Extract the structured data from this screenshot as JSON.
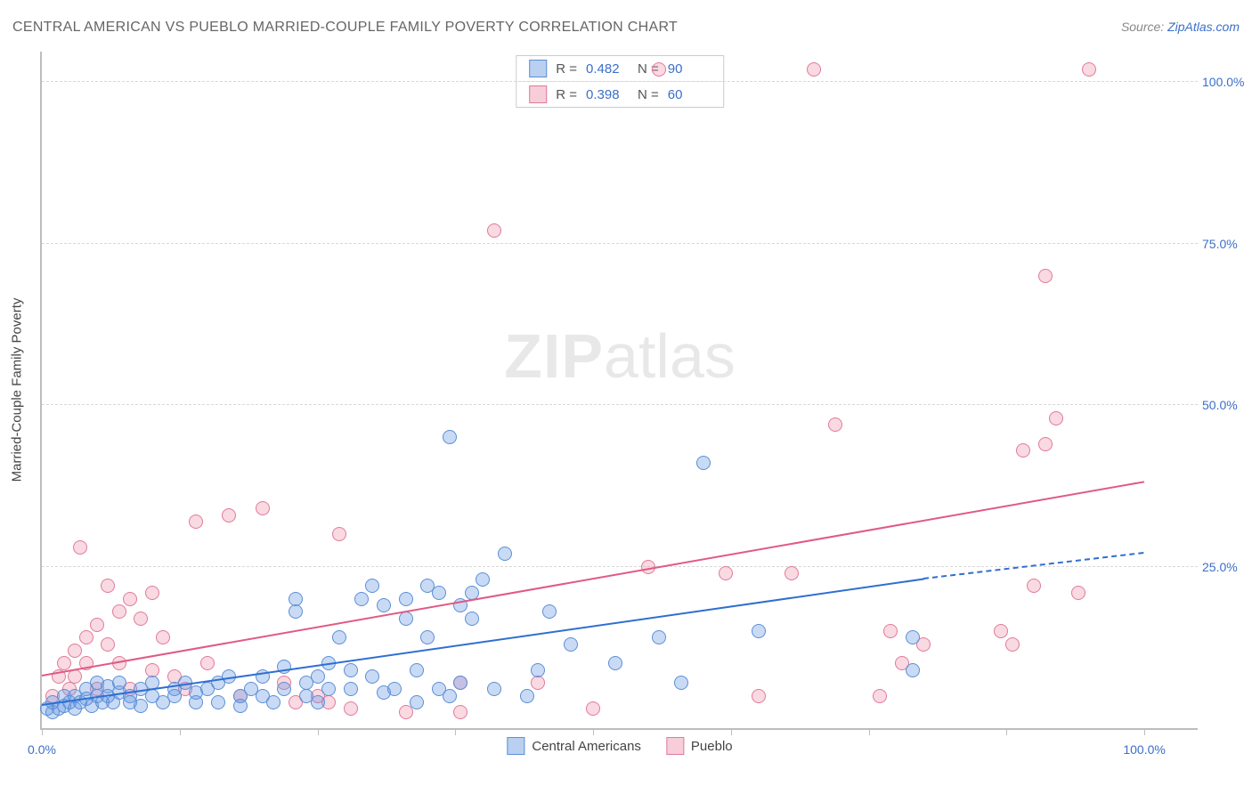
{
  "title": "CENTRAL AMERICAN VS PUEBLO MARRIED-COUPLE FAMILY POVERTY CORRELATION CHART",
  "source_label": "Source:",
  "source_name": "ZipAtlas.com",
  "watermark": {
    "left": "ZIP",
    "right": "atlas"
  },
  "ylabel": "Married-Couple Family Poverty",
  "chart": {
    "type": "scatter",
    "xlim": [
      0,
      105
    ],
    "ylim": [
      0,
      105
    ],
    "xtick_positions": [
      0,
      12.5,
      25,
      37.5,
      50,
      62.5,
      75,
      87.5,
      100
    ],
    "xtick_labels": {
      "0": "0.0%",
      "100": "100.0%"
    },
    "ytick_positions": [
      25,
      50,
      75,
      100
    ],
    "ytick_labels": [
      "25.0%",
      "50.0%",
      "75.0%",
      "100.0%"
    ],
    "grid_color": "#d8d8d8",
    "axis_color": "#bdbdbd",
    "background_color": "#ffffff",
    "marker_radius": 8,
    "marker_border_width": 1.2,
    "series": [
      {
        "name": "Central Americans",
        "fill": "rgba(100,150,225,0.35)",
        "stroke": "#5b8fd6",
        "r_value": "0.482",
        "n_value": "90",
        "trend": {
          "x1": 0,
          "y1": 3.5,
          "x2": 80,
          "y2": 23,
          "x2_dash": 100,
          "y2_dash": 27,
          "color": "#2f6fd0"
        },
        "points": [
          [
            0.5,
            3
          ],
          [
            1,
            2.5
          ],
          [
            1,
            4
          ],
          [
            1.5,
            3
          ],
          [
            2,
            3.5
          ],
          [
            2,
            5
          ],
          [
            2.5,
            4
          ],
          [
            3,
            3
          ],
          [
            3,
            5
          ],
          [
            3.5,
            4
          ],
          [
            4,
            4.5
          ],
          [
            4,
            6
          ],
          [
            4.5,
            3.5
          ],
          [
            5,
            5
          ],
          [
            5,
            7
          ],
          [
            5.5,
            4
          ],
          [
            6,
            5
          ],
          [
            6,
            6.5
          ],
          [
            6.5,
            4
          ],
          [
            7,
            5.5
          ],
          [
            7,
            7
          ],
          [
            8,
            5
          ],
          [
            8,
            4
          ],
          [
            9,
            6
          ],
          [
            9,
            3.5
          ],
          [
            10,
            5
          ],
          [
            10,
            7
          ],
          [
            11,
            4
          ],
          [
            12,
            6
          ],
          [
            12,
            5
          ],
          [
            13,
            7
          ],
          [
            14,
            4
          ],
          [
            14,
            5.5
          ],
          [
            15,
            6
          ],
          [
            16,
            4
          ],
          [
            16,
            7
          ],
          [
            17,
            8
          ],
          [
            18,
            5
          ],
          [
            18,
            3.5
          ],
          [
            19,
            6
          ],
          [
            20,
            5
          ],
          [
            20,
            8
          ],
          [
            21,
            4
          ],
          [
            22,
            6
          ],
          [
            22,
            9.5
          ],
          [
            23,
            18
          ],
          [
            23,
            20
          ],
          [
            24,
            5
          ],
          [
            24,
            7
          ],
          [
            25,
            8
          ],
          [
            25,
            4
          ],
          [
            26,
            6
          ],
          [
            26,
            10
          ],
          [
            27,
            14
          ],
          [
            28,
            9
          ],
          [
            28,
            6
          ],
          [
            29,
            20
          ],
          [
            30,
            22
          ],
          [
            30,
            8
          ],
          [
            31,
            5.5
          ],
          [
            31,
            19
          ],
          [
            32,
            6
          ],
          [
            33,
            20
          ],
          [
            33,
            17
          ],
          [
            34,
            4
          ],
          [
            34,
            9
          ],
          [
            35,
            22
          ],
          [
            35,
            14
          ],
          [
            36,
            6
          ],
          [
            36,
            21
          ],
          [
            37,
            5
          ],
          [
            37,
            45
          ],
          [
            38,
            19
          ],
          [
            38,
            7
          ],
          [
            39,
            21
          ],
          [
            39,
            17
          ],
          [
            40,
            23
          ],
          [
            41,
            6
          ],
          [
            42,
            27
          ],
          [
            44,
            5
          ],
          [
            45,
            9
          ],
          [
            46,
            18
          ],
          [
            48,
            13
          ],
          [
            52,
            10
          ],
          [
            56,
            14
          ],
          [
            58,
            7
          ],
          [
            60,
            41
          ],
          [
            65,
            15
          ],
          [
            79,
            9
          ],
          [
            79,
            14
          ]
        ]
      },
      {
        "name": "Pueblo",
        "fill": "rgba(235,130,160,0.30)",
        "stroke": "#e17a9a",
        "r_value": "0.398",
        "n_value": "60",
        "trend": {
          "x1": 0,
          "y1": 8,
          "x2": 100,
          "y2": 38,
          "color": "#e05a85"
        },
        "points": [
          [
            1,
            5
          ],
          [
            1.5,
            8
          ],
          [
            2,
            10
          ],
          [
            2.5,
            6
          ],
          [
            3,
            12
          ],
          [
            3,
            8
          ],
          [
            3.5,
            28
          ],
          [
            4,
            14
          ],
          [
            4,
            10
          ],
          [
            5,
            16
          ],
          [
            5,
            6
          ],
          [
            6,
            13
          ],
          [
            6,
            22
          ],
          [
            7,
            10
          ],
          [
            7,
            18
          ],
          [
            8,
            20
          ],
          [
            8,
            6
          ],
          [
            9,
            17
          ],
          [
            10,
            21
          ],
          [
            10,
            9
          ],
          [
            11,
            14
          ],
          [
            12,
            8
          ],
          [
            13,
            6
          ],
          [
            14,
            32
          ],
          [
            15,
            10
          ],
          [
            17,
            33
          ],
          [
            18,
            5
          ],
          [
            20,
            34
          ],
          [
            22,
            7
          ],
          [
            23,
            4
          ],
          [
            25,
            5
          ],
          [
            26,
            4
          ],
          [
            27,
            30
          ],
          [
            28,
            3
          ],
          [
            33,
            2.5
          ],
          [
            38,
            7
          ],
          [
            38,
            2.5
          ],
          [
            41,
            77
          ],
          [
            45,
            7
          ],
          [
            50,
            3
          ],
          [
            55,
            25
          ],
          [
            56,
            102
          ],
          [
            62,
            24
          ],
          [
            65,
            5
          ],
          [
            68,
            24
          ],
          [
            70,
            102
          ],
          [
            72,
            47
          ],
          [
            76,
            5
          ],
          [
            77,
            15
          ],
          [
            78,
            10
          ],
          [
            80,
            13
          ],
          [
            87,
            15
          ],
          [
            88,
            13
          ],
          [
            89,
            43
          ],
          [
            90,
            22
          ],
          [
            91,
            70
          ],
          [
            91,
            44
          ],
          [
            92,
            48
          ],
          [
            94,
            21
          ],
          [
            95,
            102
          ]
        ]
      }
    ]
  },
  "legend_corr": {
    "r_label": "R =",
    "n_label": "N ="
  }
}
